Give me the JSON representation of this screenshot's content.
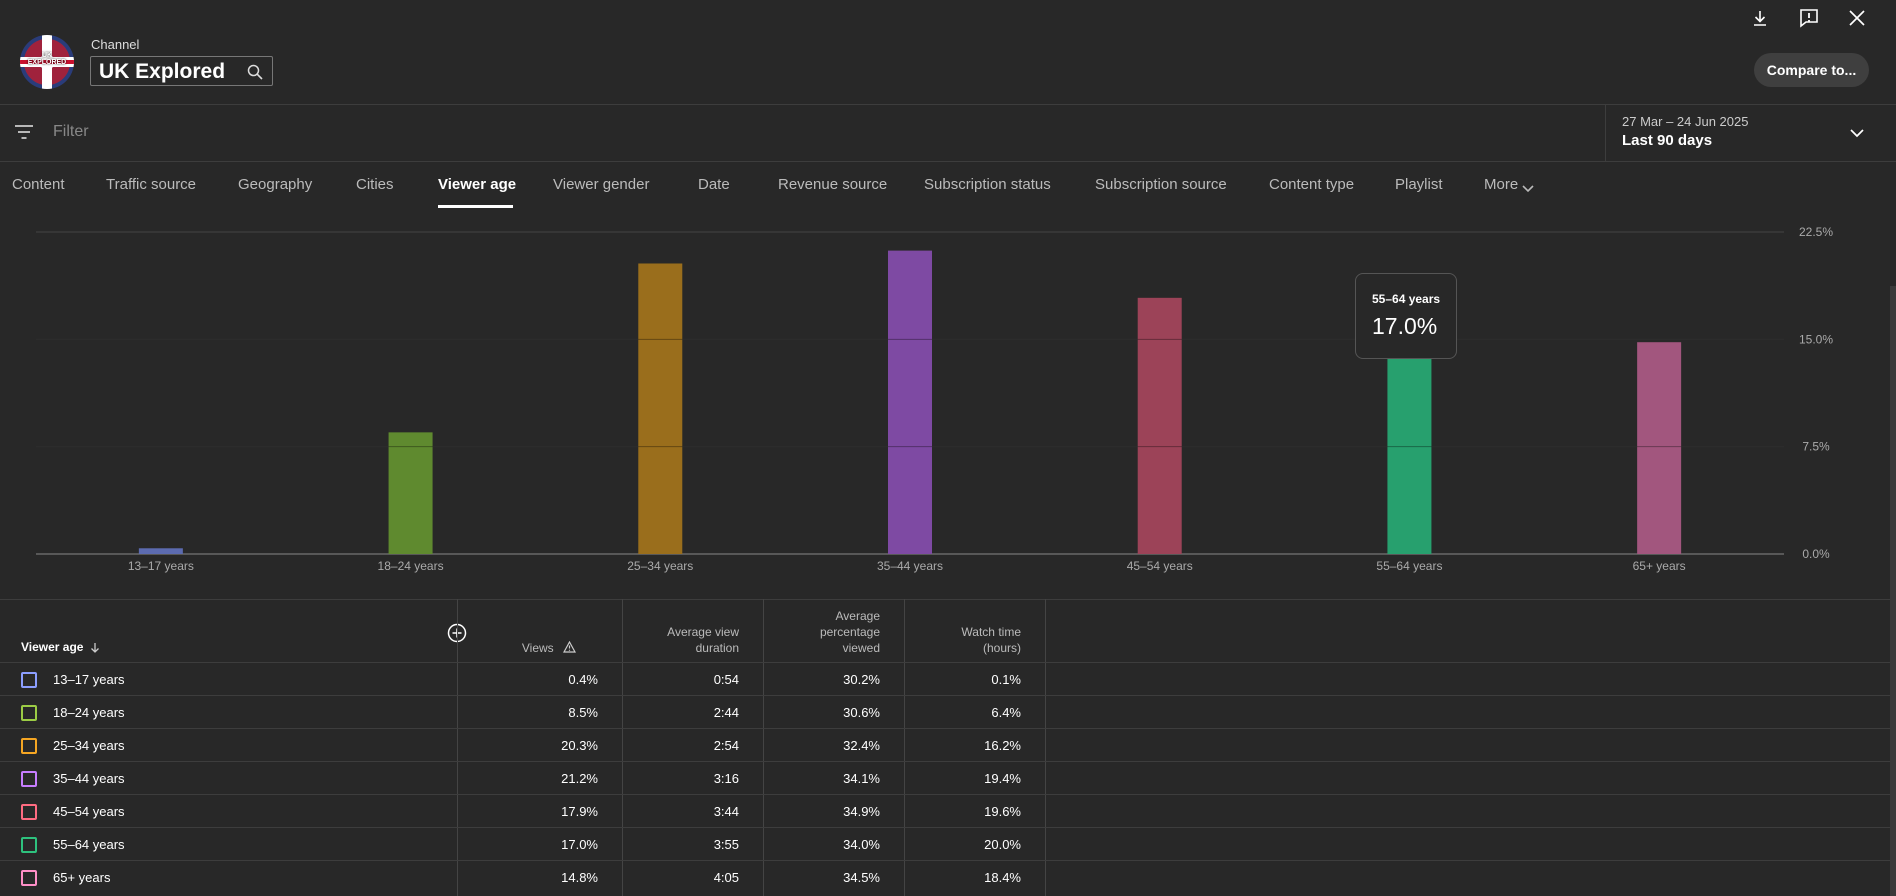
{
  "header": {
    "channel_label": "Channel",
    "channel_name": "UK Explored",
    "avatar_text": "UK EXPLORED",
    "compare_button": "Compare to...",
    "icons": [
      "download-icon",
      "feedback-icon",
      "close-icon"
    ]
  },
  "filter": {
    "placeholder": "Filter"
  },
  "date_range": {
    "dates": "27 Mar – 24 Jun 2025",
    "label": "Last 90 days"
  },
  "tabs": [
    {
      "label": "Content"
    },
    {
      "label": "Traffic source"
    },
    {
      "label": "Geography"
    },
    {
      "label": "Cities"
    },
    {
      "label": "Viewer age"
    },
    {
      "label": "Viewer gender"
    },
    {
      "label": "Date"
    },
    {
      "label": "Revenue source"
    },
    {
      "label": "Subscription status"
    },
    {
      "label": "Subscription source"
    },
    {
      "label": "Content type"
    },
    {
      "label": "Playlist"
    },
    {
      "label": "More"
    }
  ],
  "active_tab": "Viewer age",
  "chart_data": {
    "type": "bar",
    "categories": [
      "13–17 years",
      "18–24 years",
      "25–34 years",
      "35–44 years",
      "45–54 years",
      "55–64 years",
      "65+ years"
    ],
    "values": [
      0.4,
      8.5,
      20.3,
      21.2,
      17.9,
      17.0,
      14.8
    ],
    "colors": [
      "#5c6bb0",
      "#5f8a2f",
      "#9a6e1c",
      "#7e4aa3",
      "#9c4358",
      "#27a06e",
      "#a2567e"
    ],
    "ylim": [
      0,
      22.5
    ],
    "yticks": [
      "0.0%",
      "7.5%",
      "15.0%",
      "22.5%"
    ],
    "ytick_values": [
      0,
      7.5,
      15,
      22.5
    ],
    "grid": true,
    "tooltip": {
      "label": "55–64 years",
      "value": "17.0%"
    }
  },
  "table": {
    "header_first": "Viewer age",
    "columns": [
      {
        "lines": [
          "Views"
        ]
      },
      {
        "lines": [
          "Average view",
          "duration"
        ]
      },
      {
        "lines": [
          "Average",
          "percentage",
          "viewed"
        ]
      },
      {
        "lines": [
          "Watch time",
          "(hours)"
        ]
      }
    ],
    "rows": [
      {
        "label": "13–17 years",
        "color": "#8c9eff",
        "views": "0.4%",
        "avd": "0:54",
        "apv": "30.2%",
        "wt": "0.1%"
      },
      {
        "label": "18–24 years",
        "color": "#9ccc45",
        "views": "8.5%",
        "avd": "2:44",
        "apv": "30.6%",
        "wt": "6.4%"
      },
      {
        "label": "25–34 years",
        "color": "#f5a623",
        "views": "20.3%",
        "avd": "2:54",
        "apv": "32.4%",
        "wt": "16.2%"
      },
      {
        "label": "35–44 years",
        "color": "#c77dff",
        "views": "21.2%",
        "avd": "3:16",
        "apv": "34.1%",
        "wt": "19.4%"
      },
      {
        "label": "45–54 years",
        "color": "#ff6b81",
        "views": "17.9%",
        "avd": "3:44",
        "apv": "34.9%",
        "wt": "19.6%"
      },
      {
        "label": "55–64 years",
        "color": "#2ec27e",
        "views": "17.0%",
        "avd": "3:55",
        "apv": "34.0%",
        "wt": "20.0%"
      },
      {
        "label": "65+ years",
        "color": "#ff8fc7",
        "views": "14.8%",
        "avd": "4:05",
        "apv": "34.5%",
        "wt": "18.4%"
      }
    ]
  }
}
